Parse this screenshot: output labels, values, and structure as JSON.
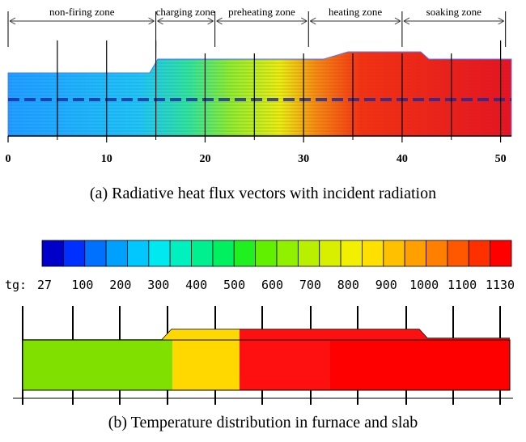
{
  "panel_a": {
    "zones": [
      {
        "label": "non-firing zone",
        "from": 0,
        "to": 15
      },
      {
        "label": "charging zone",
        "from": 15,
        "to": 21
      },
      {
        "label": "preheating zone",
        "from": 21,
        "to": 30.5
      },
      {
        "label": "heating zone",
        "from": 30.5,
        "to": 40
      },
      {
        "label": "soaking zone",
        "from": 40,
        "to": 50.5
      }
    ],
    "axis_ticks": [
      "0",
      "10",
      "20",
      "30",
      "40",
      "50"
    ],
    "axis_values": [
      0,
      10,
      20,
      30,
      40,
      50
    ],
    "caption": "(a) Radiative heat flux vectors with incident radiation"
  },
  "panel_b": {
    "colorbar_prefix": "tg:",
    "colorbar_labels": [
      "27",
      "100",
      "200",
      "300",
      "400",
      "500",
      "600",
      "700",
      "800",
      "900",
      "1000",
      "1100",
      "1130"
    ],
    "colorbar_colors": [
      "#0000c8",
      "#0030ff",
      "#0070ff",
      "#00a0ff",
      "#00c8ff",
      "#00e8f0",
      "#00f0c0",
      "#00f090",
      "#00f060",
      "#20f020",
      "#60f000",
      "#90f000",
      "#b8f000",
      "#d8f000",
      "#f0f000",
      "#ffe000",
      "#ffc000",
      "#ffa000",
      "#ff8000",
      "#ff5800",
      "#ff3000",
      "#ff0000"
    ],
    "caption": "(b) Temperature distribution in furnace and slab"
  },
  "colors": {
    "green": "#80e000",
    "yellow": "#ffd800",
    "red": "#ff1010"
  }
}
